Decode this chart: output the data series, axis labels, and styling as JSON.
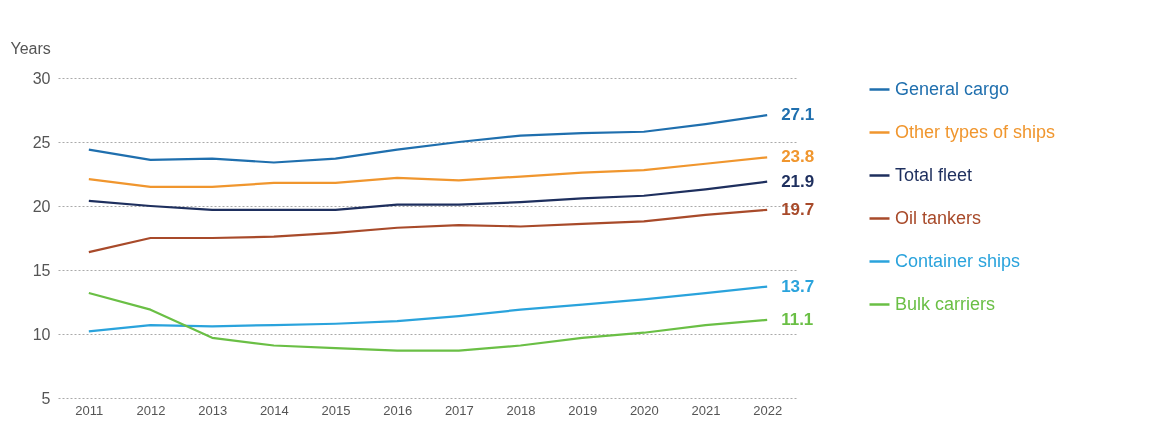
{
  "chart_data": {
    "type": "line",
    "ylabel": "Years",
    "categories": [
      "2011",
      "2012",
      "2013",
      "2014",
      "2015",
      "2016",
      "2017",
      "2018",
      "2019",
      "2020",
      "2021",
      "2022"
    ],
    "ylim": [
      5,
      30
    ],
    "yticks": [
      5,
      10,
      15,
      20,
      25,
      30
    ],
    "grid": "y",
    "legend": "right",
    "series": [
      {
        "name": "General cargo",
        "color": "#1f6fae",
        "values": [
          24.4,
          23.6,
          23.7,
          23.4,
          23.7,
          24.4,
          25.0,
          25.5,
          25.7,
          25.8,
          26.4,
          27.1
        ],
        "value_labels": [
          null,
          null,
          null,
          null,
          null,
          null,
          null,
          null,
          null,
          null,
          null,
          "27.1"
        ]
      },
      {
        "name": "Other types of ships",
        "color": "#f0962e",
        "values": [
          22.1,
          21.5,
          21.5,
          21.8,
          21.8,
          22.2,
          22.0,
          22.3,
          22.6,
          22.8,
          23.3,
          23.8
        ],
        "value_labels": [
          null,
          null,
          null,
          null,
          null,
          null,
          null,
          null,
          null,
          null,
          null,
          "23.8"
        ]
      },
      {
        "name": "Total fleet",
        "color": "#1e2f5e",
        "values": [
          20.4,
          20.0,
          19.7,
          19.7,
          19.7,
          20.1,
          20.1,
          20.3,
          20.6,
          20.8,
          21.3,
          21.9
        ],
        "value_labels": [
          null,
          null,
          null,
          null,
          null,
          null,
          null,
          null,
          null,
          null,
          null,
          "21.9"
        ]
      },
      {
        "name": "Oil tankers",
        "color": "#a84a2a",
        "values": [
          16.4,
          17.5,
          17.5,
          17.6,
          17.9,
          18.3,
          18.5,
          18.4,
          18.6,
          18.8,
          19.3,
          19.7
        ],
        "value_labels": [
          null,
          null,
          null,
          null,
          null,
          null,
          null,
          null,
          null,
          null,
          null,
          "19.7"
        ]
      },
      {
        "name": "Container ships",
        "color": "#2aa3dc",
        "values": [
          10.2,
          10.7,
          10.6,
          10.7,
          10.8,
          11.0,
          11.4,
          11.9,
          12.3,
          12.7,
          13.2,
          13.7
        ],
        "value_labels": [
          null,
          null,
          null,
          null,
          null,
          null,
          null,
          null,
          null,
          null,
          null,
          "13.7"
        ]
      },
      {
        "name": "Bulk carriers",
        "color": "#6abf45",
        "values": [
          13.2,
          11.9,
          9.7,
          9.1,
          8.9,
          8.7,
          8.7,
          9.1,
          9.7,
          10.1,
          10.7,
          11.1
        ],
        "value_labels": [
          null,
          null,
          null,
          null,
          null,
          null,
          null,
          null,
          null,
          null,
          null,
          "11.1"
        ]
      }
    ]
  }
}
